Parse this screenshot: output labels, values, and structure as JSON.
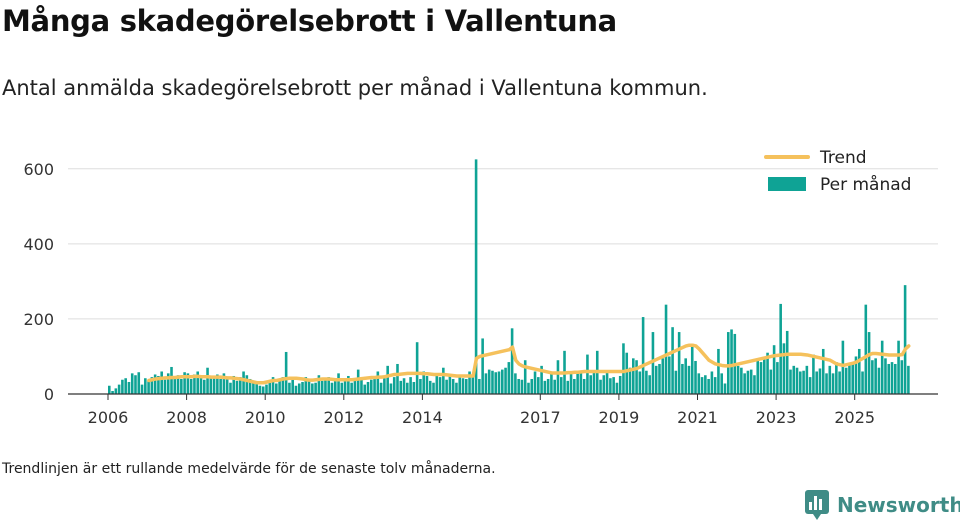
{
  "title": "Många skadegörelsebrott i Vallentuna",
  "subtitle": "Antal anmälda skadegörelsebrott per månad i Vallentuna kommun.",
  "note": "Trendlinjen är ett rullande medelvärde för de senaste tolv månaderna.",
  "brand": {
    "name": "Newsworthy",
    "icon": "newsworthy-logo-icon"
  },
  "colors": {
    "bar": "#0fa395",
    "trend": "#f5c15c",
    "grid": "#dddddd",
    "axis": "#333333"
  },
  "chart_data": {
    "type": "bar",
    "title": "Många skadegörelsebrott i Vallentuna",
    "xlabel": "",
    "ylabel": "",
    "ylim": [
      0,
      650
    ],
    "y_ticks": [
      0,
      200,
      400,
      600
    ],
    "x_ticks": [
      "2006",
      "2008",
      "2010",
      "2012",
      "2014",
      "2017",
      "2019",
      "2021",
      "2023",
      "2025"
    ],
    "grid": true,
    "legend_position": "top-right",
    "legend": [
      "Trend",
      "Per månad"
    ],
    "series": [
      {
        "name": "Per månad",
        "kind": "bar",
        "start": "2006-01",
        "values": [
          22,
          8,
          15,
          25,
          38,
          42,
          32,
          55,
          50,
          58,
          25,
          42,
          36,
          45,
          52,
          48,
          60,
          38,
          55,
          72,
          44,
          50,
          40,
          58,
          55,
          40,
          52,
          60,
          45,
          38,
          70,
          48,
          42,
          52,
          40,
          55,
          45,
          30,
          48,
          35,
          45,
          60,
          50,
          40,
          32,
          28,
          22,
          20,
          25,
          30,
          45,
          28,
          35,
          45,
          112,
          30,
          42,
          22,
          28,
          32,
          45,
          40,
          28,
          30,
          50,
          35,
          40,
          45,
          30,
          35,
          55,
          30,
          40,
          48,
          30,
          38,
          65,
          40,
          25,
          32,
          38,
          45,
          60,
          30,
          42,
          75,
          28,
          45,
          80,
          35,
          42,
          30,
          45,
          32,
          138,
          40,
          60,
          48,
          35,
          30,
          55,
          45,
          70,
          38,
          52,
          40,
          30,
          45,
          42,
          40,
          60,
          45,
          625,
          40,
          148,
          55,
          65,
          62,
          58,
          60,
          65,
          70,
          85,
          175,
          55,
          40,
          38,
          90,
          30,
          40,
          60,
          45,
          75,
          35,
          40,
          55,
          38,
          90,
          45,
          115,
          35,
          55,
          40,
          62,
          60,
          40,
          105,
          50,
          62,
          115,
          38,
          50,
          58,
          42,
          45,
          30,
          48,
          135,
          110,
          70,
          95,
          90,
          60,
          205,
          62,
          50,
          165,
          75,
          80,
          95,
          238,
          100,
          178,
          62,
          165,
          80,
          95,
          75,
          130,
          88,
          55,
          45,
          50,
          40,
          60,
          45,
          120,
          55,
          28,
          165,
          172,
          160,
          75,
          70,
          55,
          62,
          65,
          50,
          90,
          85,
          95,
          110,
          65,
          130,
          85,
          240,
          135,
          168,
          65,
          75,
          70,
          60,
          62,
          75,
          45,
          105,
          60,
          68,
          120,
          55,
          75,
          55,
          85,
          60,
          142,
          70,
          80,
          85,
          100,
          120,
          60,
          238,
          165,
          90,
          95,
          70,
          142,
          95,
          80,
          85,
          80,
          142,
          90,
          290,
          75
        ]
      },
      {
        "name": "Trend",
        "kind": "line",
        "start": "2006-01",
        "values": [
          null,
          null,
          null,
          null,
          null,
          null,
          null,
          null,
          null,
          null,
          null,
          null,
          36,
          38,
          40,
          41,
          42,
          43,
          43,
          44,
          44,
          45,
          46,
          46,
          46,
          46,
          47,
          47,
          46,
          46,
          46,
          45,
          45,
          45,
          45,
          44,
          43,
          43,
          42,
          41,
          40,
          38,
          36,
          34,
          32,
          30,
          30,
          30,
          32,
          34,
          36,
          36,
          38,
          40,
          41,
          42,
          42,
          42,
          41,
          40,
          38,
          37,
          37,
          38,
          39,
          40,
          40,
          40,
          39,
          38,
          38,
          38,
          38,
          38,
          38,
          39,
          40,
          41,
          42,
          43,
          44,
          44,
          45,
          45,
          46,
          48,
          50,
          52,
          52,
          53,
          54,
          55,
          55,
          55,
          55,
          55,
          54,
          54,
          53,
          52,
          52,
          52,
          52,
          51,
          50,
          49,
          48,
          48,
          48,
          48,
          48,
          48,
          95,
          100,
          102,
          104,
          106,
          108,
          110,
          112,
          114,
          116,
          118,
          125,
          90,
          80,
          75,
          72,
          70,
          68,
          66,
          64,
          62,
          60,
          58,
          56,
          56,
          56,
          56,
          56,
          57,
          57,
          58,
          58,
          59,
          60,
          60,
          60,
          60,
          60,
          60,
          60,
          60,
          60,
          60,
          60,
          60,
          60,
          62,
          64,
          66,
          68,
          72,
          76,
          80,
          84,
          88,
          92,
          96,
          100,
          104,
          108,
          112,
          116,
          120,
          124,
          128,
          130,
          130,
          128,
          120,
          110,
          100,
          90,
          85,
          80,
          78,
          76,
          75,
          75,
          76,
          78,
          80,
          82,
          84,
          86,
          88,
          90,
          92,
          94,
          96,
          98,
          100,
          102,
          103,
          104,
          105,
          106,
          106,
          106,
          106,
          106,
          105,
          104,
          102,
          100,
          98,
          96,
          94,
          92,
          90,
          85,
          80,
          78,
          76,
          78,
          80,
          82,
          85,
          90,
          95,
          100,
          105,
          108,
          108,
          107,
          106,
          105,
          104,
          104,
          104,
          104,
          105,
          120,
          128
        ]
      }
    ]
  }
}
